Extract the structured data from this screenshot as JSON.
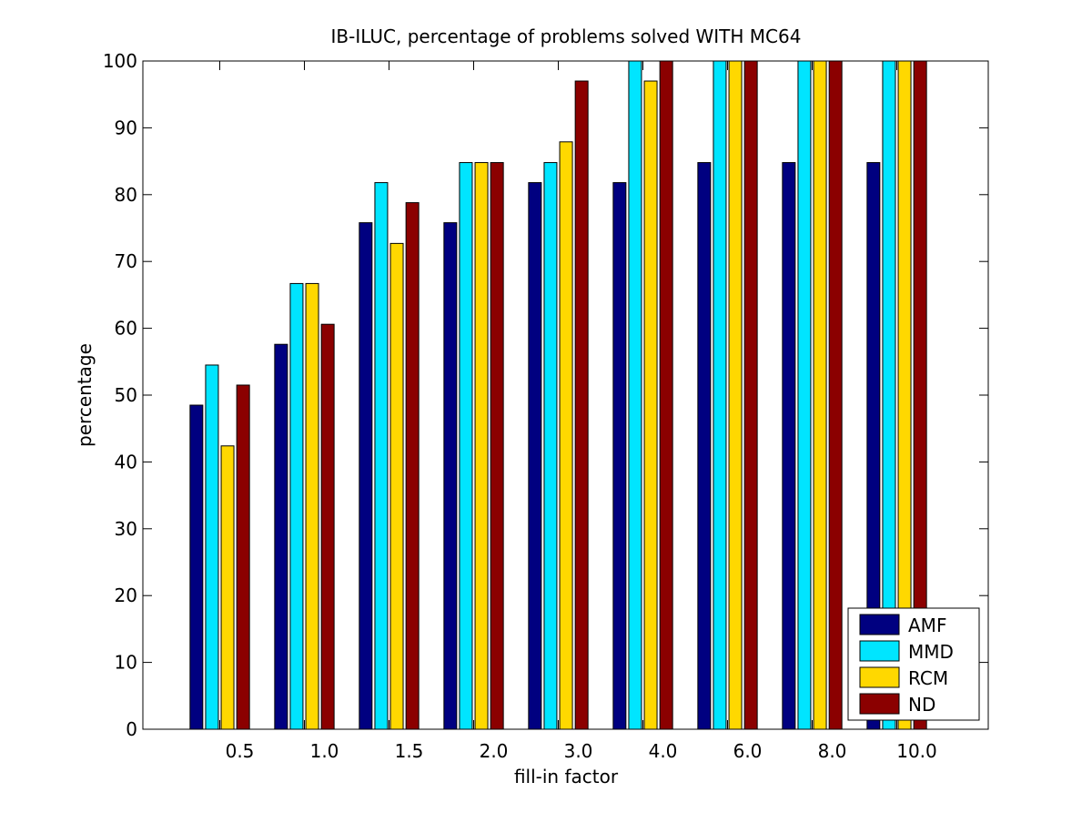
{
  "chart_data": {
    "type": "bar",
    "title": "IB-ILUC, percentage of problems solved WITH MC64",
    "xlabel": "fill-in factor",
    "ylabel": "percentage",
    "categories": [
      "0.5",
      "1.0",
      "1.5",
      "2.0",
      "3.0",
      "4.0",
      "6.0",
      "8.0",
      "10.0"
    ],
    "ylim": [
      0,
      100
    ],
    "yticks": [
      0,
      10,
      20,
      30,
      40,
      50,
      60,
      70,
      80,
      90,
      100
    ],
    "grid": false,
    "legend_position": "bottom-right",
    "series": [
      {
        "name": "AMF",
        "color": "#000080",
        "values": [
          48.5,
          57.6,
          75.8,
          75.8,
          81.8,
          81.8,
          84.8,
          84.8,
          84.8
        ]
      },
      {
        "name": "MMD",
        "color": "#00e5ff",
        "values": [
          54.5,
          66.7,
          81.8,
          84.8,
          84.8,
          100,
          100,
          100,
          100
        ]
      },
      {
        "name": "RCM",
        "color": "#ffd800",
        "values": [
          42.4,
          66.7,
          72.7,
          84.8,
          87.9,
          97.0,
          100,
          100,
          100
        ]
      },
      {
        "name": "ND",
        "color": "#8b0000",
        "values": [
          51.5,
          60.6,
          78.8,
          84.8,
          97.0,
          100,
          100,
          100,
          100
        ]
      }
    ]
  }
}
